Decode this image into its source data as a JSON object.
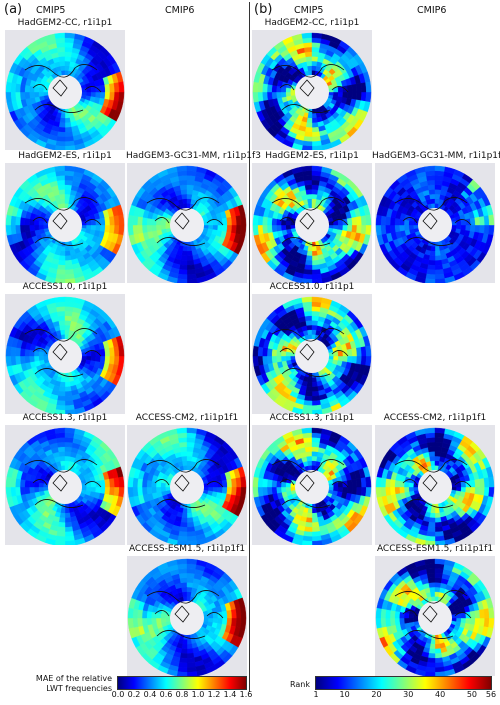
{
  "panels": {
    "a": {
      "letter": "(a)",
      "col5": "CMIP5",
      "col6": "CMIP6"
    },
    "b": {
      "letter": "(b)",
      "col5": "CMIP5",
      "col6": "CMIP6"
    }
  },
  "models": [
    {
      "cmip5": "HadGEM2-CC, r1i1p1",
      "cmip6": ""
    },
    {
      "cmip5": "HadGEM2-ES, r1i1p1",
      "cmip6": "HadGEM3-GC31-MM, r1i1p1f3"
    },
    {
      "cmip5": "ACCESS1.0, r1i1p1",
      "cmip6": ""
    },
    {
      "cmip5": "ACCESS1.3, r1i1p1",
      "cmip6": "ACCESS-CM2, r1i1p1f1"
    },
    {
      "cmip5": "",
      "cmip6": "ACCESS-ESM1.5, r1i1p1f1"
    }
  ],
  "colorbar_a": {
    "title_line1": "MAE of the relative",
    "title_line2": "LWT frequencies",
    "ticks": [
      "0.0",
      "0.2",
      "0.4",
      "0.6",
      "0.8",
      "1.0",
      "1.2",
      "1.4",
      "1.6"
    ]
  },
  "colorbar_b": {
    "title": "Rank",
    "ticks": [
      "1",
      "10",
      "20",
      "30",
      "40",
      "50",
      "56"
    ]
  }
}
